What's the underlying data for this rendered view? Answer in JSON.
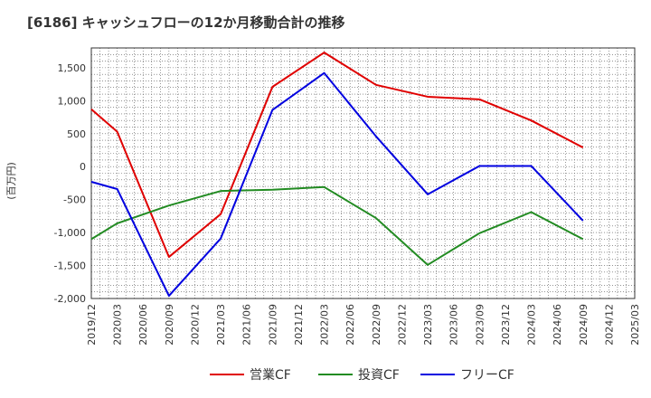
{
  "chart_data": {
    "type": "line",
    "title": "[6186]  キャッシュフローの12か月移動合計の推移",
    "xlabel": "",
    "ylabel": "(百万円)",
    "ylim": [
      -2000,
      1800
    ],
    "yticks": [
      -2000,
      -1500,
      -1000,
      -500,
      0,
      500,
      1000,
      1500
    ],
    "ytick_labels": [
      "-2,000",
      "-1,500",
      "-1,000",
      "-500",
      "0",
      "500",
      "1,000",
      "1,500"
    ],
    "x_ticks": [
      "2019/12",
      "2020/03",
      "2020/06",
      "2020/09",
      "2020/12",
      "2021/03",
      "2021/06",
      "2021/09",
      "2021/12",
      "2022/03",
      "2022/06",
      "2022/09",
      "2022/12",
      "2023/03",
      "2023/06",
      "2023/09",
      "2023/12",
      "2024/03",
      "2024/06",
      "2024/09",
      "2024/12",
      "2025/03"
    ],
    "grid": true,
    "legend_position": "bottom",
    "series": [
      {
        "name": "営業CF",
        "color": "#e00000",
        "points": [
          {
            "x": "2019/12",
            "y": 870
          },
          {
            "x": "2020/03",
            "y": 530
          },
          {
            "x": "2020/09",
            "y": -1370
          },
          {
            "x": "2021/03",
            "y": -720
          },
          {
            "x": "2021/09",
            "y": 1210
          },
          {
            "x": "2022/03",
            "y": 1730
          },
          {
            "x": "2022/09",
            "y": 1240
          },
          {
            "x": "2023/03",
            "y": 1060
          },
          {
            "x": "2023/09",
            "y": 1020
          },
          {
            "x": "2024/03",
            "y": 700
          },
          {
            "x": "2024/09",
            "y": 290
          }
        ]
      },
      {
        "name": "投資CF",
        "color": "#228b22",
        "points": [
          {
            "x": "2019/12",
            "y": -1100
          },
          {
            "x": "2020/03",
            "y": -860
          },
          {
            "x": "2020/09",
            "y": -590
          },
          {
            "x": "2021/03",
            "y": -370
          },
          {
            "x": "2021/09",
            "y": -350
          },
          {
            "x": "2022/03",
            "y": -310
          },
          {
            "x": "2022/09",
            "y": -780
          },
          {
            "x": "2023/03",
            "y": -1490
          },
          {
            "x": "2023/09",
            "y": -1010
          },
          {
            "x": "2024/03",
            "y": -690
          },
          {
            "x": "2024/09",
            "y": -1100
          }
        ]
      },
      {
        "name": "フリーCF",
        "color": "#0000e0",
        "points": [
          {
            "x": "2019/12",
            "y": -230
          },
          {
            "x": "2020/03",
            "y": -340
          },
          {
            "x": "2020/09",
            "y": -1960
          },
          {
            "x": "2021/03",
            "y": -1090
          },
          {
            "x": "2021/09",
            "y": 860
          },
          {
            "x": "2022/03",
            "y": 1420
          },
          {
            "x": "2022/09",
            "y": 460
          },
          {
            "x": "2023/03",
            "y": -420
          },
          {
            "x": "2023/09",
            "y": 10
          },
          {
            "x": "2024/03",
            "y": 10
          },
          {
            "x": "2024/09",
            "y": -820
          }
        ]
      }
    ]
  }
}
